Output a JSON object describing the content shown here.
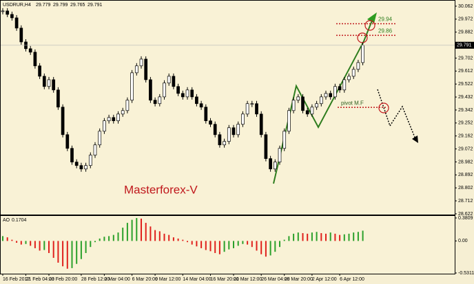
{
  "chart_data": [
    {
      "type": "candlestick",
      "title": "USDRUR,H4",
      "header_ohlc": [
        29.779,
        29.799,
        29.765
      ],
      "watermark": "Masterforex-V",
      "categories": [
        "16 Feb 2012",
        null,
        null,
        null,
        null,
        "21 Feb 04:00",
        null,
        null,
        null,
        null,
        "23 Feb 20:00",
        null,
        null,
        null,
        null,
        null,
        null,
        "28 Feb 12:00",
        null,
        null,
        null,
        null,
        "2 Mar 04:00",
        null,
        null,
        null,
        null,
        null,
        "6 Mar 20:00",
        null,
        null,
        null,
        null,
        "9 Mar 12:00",
        null,
        null,
        null,
        null,
        null,
        "14 Mar 04:00",
        null,
        null,
        null,
        null,
        null,
        "16 Mar 20:00",
        null,
        null,
        null,
        null,
        "21 Mar 12:00",
        null,
        null,
        null,
        null,
        null,
        "26 Mar 04:00",
        null,
        null,
        null,
        null,
        "28 Mar 20:00",
        null,
        null,
        null,
        null,
        null,
        "2 Apr 12:00",
        null,
        null,
        null,
        null,
        null,
        "6 Apr 12:00",
        null,
        null,
        null,
        null,
        null
      ],
      "values": [
        30.029,
        30.005,
        29.981,
        29.91,
        29.814,
        29.767,
        29.743,
        29.648,
        29.576,
        29.505,
        29.552,
        29.481,
        29.362,
        29.171,
        29.076,
        28.981,
        28.957,
        28.933,
        28.957,
        29.029,
        29.1,
        29.195,
        29.267,
        29.29,
        29.267,
        29.314,
        29.338,
        29.41,
        29.6,
        29.648,
        29.695,
        29.552,
        29.41,
        29.386,
        29.433,
        29.529,
        29.576,
        29.505,
        29.457,
        29.433,
        29.481,
        29.433,
        29.386,
        29.362,
        29.267,
        29.243,
        29.171,
        29.1,
        29.124,
        29.219,
        29.171,
        29.243,
        29.314,
        29.386,
        29.386,
        29.314,
        29.171,
        29.005,
        28.933,
        28.981,
        29.076,
        29.195,
        29.338,
        29.41,
        29.433,
        29.338,
        29.314,
        29.362,
        29.386,
        29.433,
        29.457,
        29.433,
        29.505,
        29.481,
        29.552,
        29.576,
        29.624,
        29.671,
        29.791
      ],
      "ylim": [
        28.617,
        30.1
      ],
      "yticks": [
        30.062,
        29.972,
        29.882,
        29.702,
        29.612,
        29.522,
        29.432,
        29.342,
        29.252,
        29.162,
        29.072,
        28.982,
        28.892,
        28.802,
        28.712,
        28.622
      ],
      "levels": [
        29.94,
        29.86
      ],
      "pivot": {
        "label": "pivot M.F",
        "value": 29.36
      }
    },
    {
      "type": "bar",
      "title": "AO",
      "values": [
        0.08,
        0.06,
        0.02,
        -0.03,
        -0.06,
        -0.05,
        -0.08,
        -0.12,
        -0.16,
        -0.15,
        -0.2,
        -0.28,
        -0.36,
        -0.42,
        -0.46,
        -0.45,
        -0.38,
        -0.3,
        -0.2,
        -0.1,
        -0.02,
        0.04,
        0.07,
        0.08,
        0.1,
        0.14,
        0.22,
        0.3,
        0.35,
        0.38,
        0.37,
        0.3,
        0.24,
        0.18,
        0.16,
        0.12,
        0.1,
        0.06,
        0.04,
        0.02,
        -0.02,
        -0.06,
        -0.09,
        -0.12,
        -0.15,
        -0.17,
        -0.2,
        -0.22,
        -0.18,
        -0.14,
        -0.12,
        -0.08,
        -0.05,
        -0.06,
        -0.1,
        -0.16,
        -0.22,
        -0.26,
        -0.24,
        -0.18,
        -0.1,
        0.02,
        0.08,
        0.12,
        0.14,
        0.13,
        0.12,
        0.14,
        0.15,
        0.13,
        0.12,
        0.14,
        0.12,
        0.1,
        0.11,
        0.12,
        0.14,
        0.15,
        0.1704
      ],
      "ylim": [
        -0.5424,
        0.4147
      ],
      "yticks": [
        0.3809,
        {
          "value": 0,
          "label": "0.00"
        },
        -0.5311
      ]
    }
  ]
}
